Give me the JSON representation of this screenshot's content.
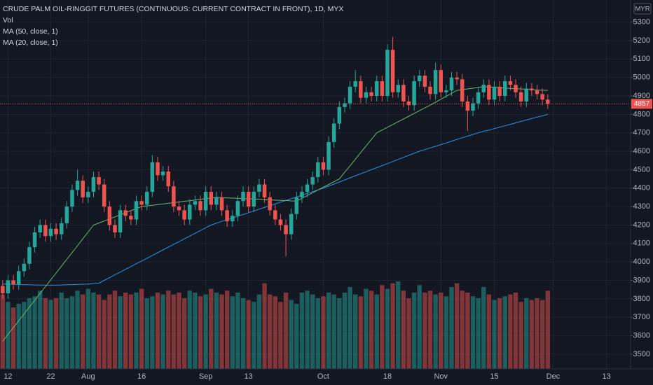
{
  "chart_data": {
    "type": "candlestick",
    "title": "CRUDE PALM OIL-RINGGIT FUTURES (CONTINUOUS: CURRENT CONTRACT IN FRONT), 1D, MYX",
    "currency": "MYR",
    "up_color": "#26a69a",
    "down_color": "#ef5350",
    "grid": true,
    "ylim": [
      3420,
      5420
    ],
    "yticks": [
      3500,
      3600,
      3700,
      3800,
      3900,
      4000,
      4100,
      4200,
      4300,
      4400,
      4500,
      4600,
      4700,
      4800,
      4900,
      5000,
      5100,
      5200,
      5300
    ],
    "categories": [
      null,
      "12",
      null,
      null,
      null,
      null,
      null,
      null,
      null,
      "22",
      null,
      null,
      null,
      null,
      null,
      null,
      "Aug",
      null,
      null,
      null,
      null,
      null,
      null,
      null,
      null,
      null,
      "16",
      null,
      null,
      null,
      null,
      null,
      null,
      null,
      null,
      null,
      null,
      null,
      "Sep",
      null,
      null,
      null,
      null,
      null,
      null,
      null,
      "13",
      null,
      null,
      null,
      null,
      null,
      null,
      null,
      null,
      null,
      null,
      null,
      null,
      null,
      "Oct",
      null,
      null,
      null,
      null,
      null,
      null,
      null,
      null,
      null,
      null,
      null,
      "18",
      null,
      null,
      null,
      null,
      null,
      null,
      null,
      null,
      null,
      "Nov",
      null,
      null,
      null,
      null,
      null,
      null,
      null,
      null,
      null,
      "15",
      null,
      null,
      null,
      null,
      null,
      null,
      null,
      null,
      null,
      null,
      "Dec",
      null,
      null,
      null,
      null,
      null,
      null,
      null,
      null,
      null,
      "13",
      null,
      null,
      null,
      null
    ],
    "open": [
      3870,
      3830,
      3900,
      3880,
      3950,
      3990,
      4080,
      4160,
      4200,
      4140,
      4180,
      4150,
      4210,
      4300,
      4390,
      4440,
      4350,
      4380,
      4460,
      4420,
      4300,
      4200,
      4160,
      4280,
      4250,
      4230,
      4330,
      4310,
      4380,
      4540,
      4470,
      4490,
      4410,
      4300,
      4280,
      4230,
      4310,
      4330,
      4280,
      4380,
      4310,
      4350,
      4280,
      4220,
      4250,
      4330,
      4380,
      4300,
      4380,
      4420,
      4350,
      4280,
      4230,
      4200,
      4150,
      4260,
      4350,
      4380,
      4420,
      4460,
      4540,
      4500,
      4650,
      4750,
      4840,
      4860,
      4950,
      4980,
      4890,
      4920,
      4900,
      4980,
      4900,
      5150,
      4920,
      4960,
      4870,
      4850,
      4980,
      5010,
      4950,
      4910,
      5040,
      4920,
      4930,
      5000,
      4990,
      4870,
      4820,
      4860,
      4920,
      4960,
      4880,
      4950,
      4900,
      4980,
      4960,
      4920,
      4870,
      4940,
      4930,
      4910,
      4880,
      null,
      null,
      null,
      null,
      null,
      null,
      null,
      null,
      null,
      null,
      null,
      null,
      null,
      null,
      null
    ],
    "high": [
      3900,
      3930,
      3930,
      3980,
      4020,
      4110,
      4190,
      4230,
      4230,
      4210,
      4210,
      4240,
      4330,
      4420,
      4500,
      4470,
      4410,
      4490,
      4490,
      4450,
      4330,
      4230,
      4310,
      4310,
      4280,
      4360,
      4360,
      4410,
      4580,
      4570,
      4520,
      4520,
      4440,
      4330,
      4310,
      4340,
      4360,
      4360,
      4410,
      4410,
      4380,
      4380,
      4310,
      4280,
      4360,
      4410,
      4410,
      4410,
      4450,
      4450,
      4380,
      4310,
      4260,
      4230,
      4290,
      4380,
      4410,
      4450,
      4490,
      4570,
      4570,
      4680,
      4780,
      4870,
      4890,
      4980,
      5040,
      5010,
      4950,
      4950,
      5010,
      5010,
      5180,
      5220,
      4990,
      4990,
      4900,
      5010,
      5040,
      5040,
      4980,
      5080,
      5070,
      4960,
      5030,
      5030,
      5020,
      4900,
      4890,
      4950,
      4990,
      4990,
      4980,
      4980,
      5010,
      5010,
      4990,
      4950,
      4970,
      4970,
      4960,
      4940,
      4910,
      null,
      null,
      null,
      null,
      null,
      null,
      null,
      null,
      null,
      null,
      null,
      null,
      null,
      null,
      null
    ],
    "low": [
      3800,
      3800,
      3850,
      3850,
      3920,
      3960,
      4050,
      4130,
      4110,
      4110,
      4120,
      4120,
      4180,
      4270,
      4360,
      4320,
      4320,
      4350,
      4390,
      4270,
      4170,
      4130,
      4130,
      4220,
      4200,
      4200,
      4280,
      4280,
      4350,
      4440,
      4440,
      4380,
      4270,
      4250,
      4200,
      4200,
      4280,
      4250,
      4250,
      4280,
      4280,
      4250,
      4190,
      4190,
      4220,
      4300,
      4270,
      4270,
      4350,
      4320,
      4250,
      4200,
      4170,
      4030,
      4120,
      4230,
      4320,
      4350,
      4390,
      4430,
      4470,
      4470,
      4620,
      4720,
      4810,
      4830,
      4920,
      4860,
      4860,
      4870,
      4870,
      4870,
      4870,
      4890,
      4890,
      4840,
      4820,
      4820,
      4950,
      4920,
      4880,
      4880,
      4890,
      4890,
      4900,
      4960,
      4840,
      4710,
      4790,
      4830,
      4890,
      4850,
      4850,
      4870,
      4870,
      4930,
      4890,
      4840,
      4840,
      4900,
      4880,
      4850,
      4830,
      null,
      null,
      null,
      null,
      null,
      null,
      null,
      null,
      null,
      null,
      null,
      null,
      null,
      null,
      null
    ],
    "close": [
      3830,
      3900,
      3880,
      3950,
      3990,
      4080,
      4160,
      4200,
      4140,
      4180,
      4150,
      4210,
      4300,
      4390,
      4440,
      4350,
      4380,
      4460,
      4420,
      4300,
      4200,
      4160,
      4280,
      4250,
      4230,
      4330,
      4310,
      4380,
      4540,
      4470,
      4490,
      4410,
      4300,
      4280,
      4230,
      4310,
      4330,
      4280,
      4380,
      4310,
      4350,
      4280,
      4220,
      4250,
      4330,
      4380,
      4300,
      4380,
      4420,
      4350,
      4280,
      4230,
      4200,
      4150,
      4260,
      4350,
      4380,
      4420,
      4460,
      4540,
      4500,
      4650,
      4750,
      4840,
      4860,
      4950,
      4980,
      4890,
      4920,
      4900,
      4980,
      4900,
      5150,
      4920,
      4960,
      4870,
      4850,
      4980,
      5010,
      4950,
      4910,
      5040,
      4920,
      4930,
      5000,
      4990,
      4870,
      4820,
      4860,
      4920,
      4960,
      4880,
      4950,
      4900,
      4980,
      4960,
      4920,
      4870,
      4940,
      4930,
      4910,
      4880,
      4857,
      null,
      null,
      null,
      null,
      null,
      null,
      null,
      null,
      null,
      null,
      null,
      null,
      null,
      null,
      null
    ],
    "volume": {
      "name": "Vol",
      "values": [
        40000,
        36000,
        33000,
        35000,
        36000,
        38000,
        39000,
        42000,
        38000,
        37000,
        38000,
        41000,
        38000,
        39000,
        42000,
        40000,
        43000,
        41000,
        40000,
        37000,
        40000,
        42000,
        39000,
        41000,
        40000,
        41000,
        43000,
        38000,
        39000,
        41000,
        40000,
        42000,
        40000,
        41000,
        38000,
        42000,
        41000,
        39000,
        40000,
        43000,
        41000,
        40000,
        42000,
        39000,
        41000,
        38000,
        37000,
        36000,
        40000,
        46000,
        40000,
        39000,
        36000,
        41000,
        37000,
        35000,
        41000,
        42000,
        40000,
        38000,
        39000,
        41000,
        40000,
        38000,
        41000,
        44000,
        40000,
        39000,
        43000,
        42000,
        40000,
        45000,
        43000,
        46000,
        47000,
        42000,
        38000,
        41000,
        45000,
        41000,
        42000,
        40000,
        41000,
        39000,
        44000,
        46000,
        42000,
        41000,
        39000,
        38000,
        44000,
        40000,
        37000,
        38000,
        39000,
        40000,
        41000,
        36000,
        38000,
        37000,
        38000,
        37000,
        42000,
        null,
        null,
        null,
        null,
        null,
        null,
        null,
        null,
        null,
        null,
        null,
        null,
        null,
        null,
        null
      ]
    },
    "series": [
      {
        "name": "MA (50, close, 1)",
        "color": "#2196f3",
        "values": [
          3880,
          3880,
          3878,
          3878,
          3876,
          3876,
          3875,
          3875,
          3874,
          3874,
          3874,
          3875,
          3876,
          3877,
          3878,
          3879,
          3880,
          3882,
          3885,
          3900,
          3915,
          3930,
          3945,
          3960,
          3975,
          3990,
          4005,
          4020,
          4035,
          4050,
          4065,
          4080,
          4095,
          4110,
          4125,
          4140,
          4155,
          4170,
          4185,
          4200,
          4210,
          4220,
          4229,
          4238,
          4248,
          4257,
          4267,
          4276,
          4286,
          4295,
          4305,
          4314,
          4324,
          4333,
          4343,
          4352,
          4362,
          4371,
          4381,
          4390,
          4400,
          4411,
          4422,
          4433,
          4444,
          4456,
          4467,
          4478,
          4489,
          4500,
          4511,
          4522,
          4533,
          4544,
          4556,
          4567,
          4578,
          4589,
          4600,
          4609,
          4618,
          4627,
          4636,
          4645,
          4655,
          4664,
          4673,
          4682,
          4691,
          4700,
          4708,
          4715,
          4723,
          4731,
          4738,
          4746,
          4754,
          4762,
          4769,
          4777,
          4785,
          4792,
          4800,
          null,
          null,
          null,
          null,
          null,
          null,
          null,
          null,
          null,
          null,
          null,
          null,
          null,
          null,
          null
        ]
      },
      {
        "name": "MA (20, close, 1)",
        "color": "#66bb6a",
        "values": [
          3570,
          3607,
          3644,
          3681,
          3718,
          3755,
          3792,
          3829,
          3866,
          3903,
          3940,
          3977,
          4014,
          4051,
          4088,
          4125,
          4162,
          4200,
          4211,
          4222,
          4233,
          4244,
          4256,
          4267,
          4278,
          4289,
          4300,
          4304,
          4307,
          4311,
          4314,
          4318,
          4321,
          4325,
          4329,
          4332,
          4336,
          4339,
          4343,
          4346,
          4350,
          4349,
          4347,
          4346,
          4345,
          4343,
          4342,
          4341,
          4339,
          4338,
          4337,
          4335,
          4334,
          4333,
          4331,
          4330,
          4345,
          4360,
          4375,
          4390,
          4405,
          4420,
          4435,
          4450,
          4486,
          4521,
          4557,
          4593,
          4629,
          4664,
          4700,
          4715,
          4730,
          4745,
          4760,
          4775,
          4790,
          4805,
          4820,
          4835,
          4850,
          4866,
          4882,
          4898,
          4914,
          4930,
          4934,
          4938,
          4942,
          4946,
          4950,
          4948,
          4946,
          4945,
          4943,
          4941,
          4939,
          4938,
          4936,
          4934,
          4932,
          4931,
          4930,
          null,
          null,
          null,
          null,
          null,
          null,
          null,
          null,
          null,
          null,
          null,
          null,
          null,
          null,
          null
        ]
      }
    ]
  }
}
